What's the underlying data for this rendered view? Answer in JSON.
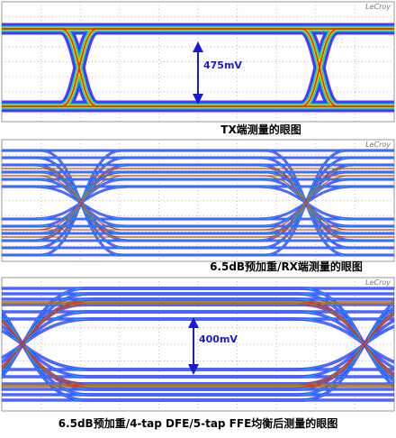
{
  "panels": [
    {
      "brand": "LeCroy",
      "annotation": "475mV",
      "caption": "TX端测量的眼图"
    },
    {
      "brand": "LeCroy",
      "caption": "6.5dB预加重/RX端测量的眼图"
    },
    {
      "brand": "LeCroy",
      "annotation": "400mV",
      "caption": "6.5dB预加重/4-tap DFE/5-tap FFE均衡后测量的眼图"
    }
  ]
}
